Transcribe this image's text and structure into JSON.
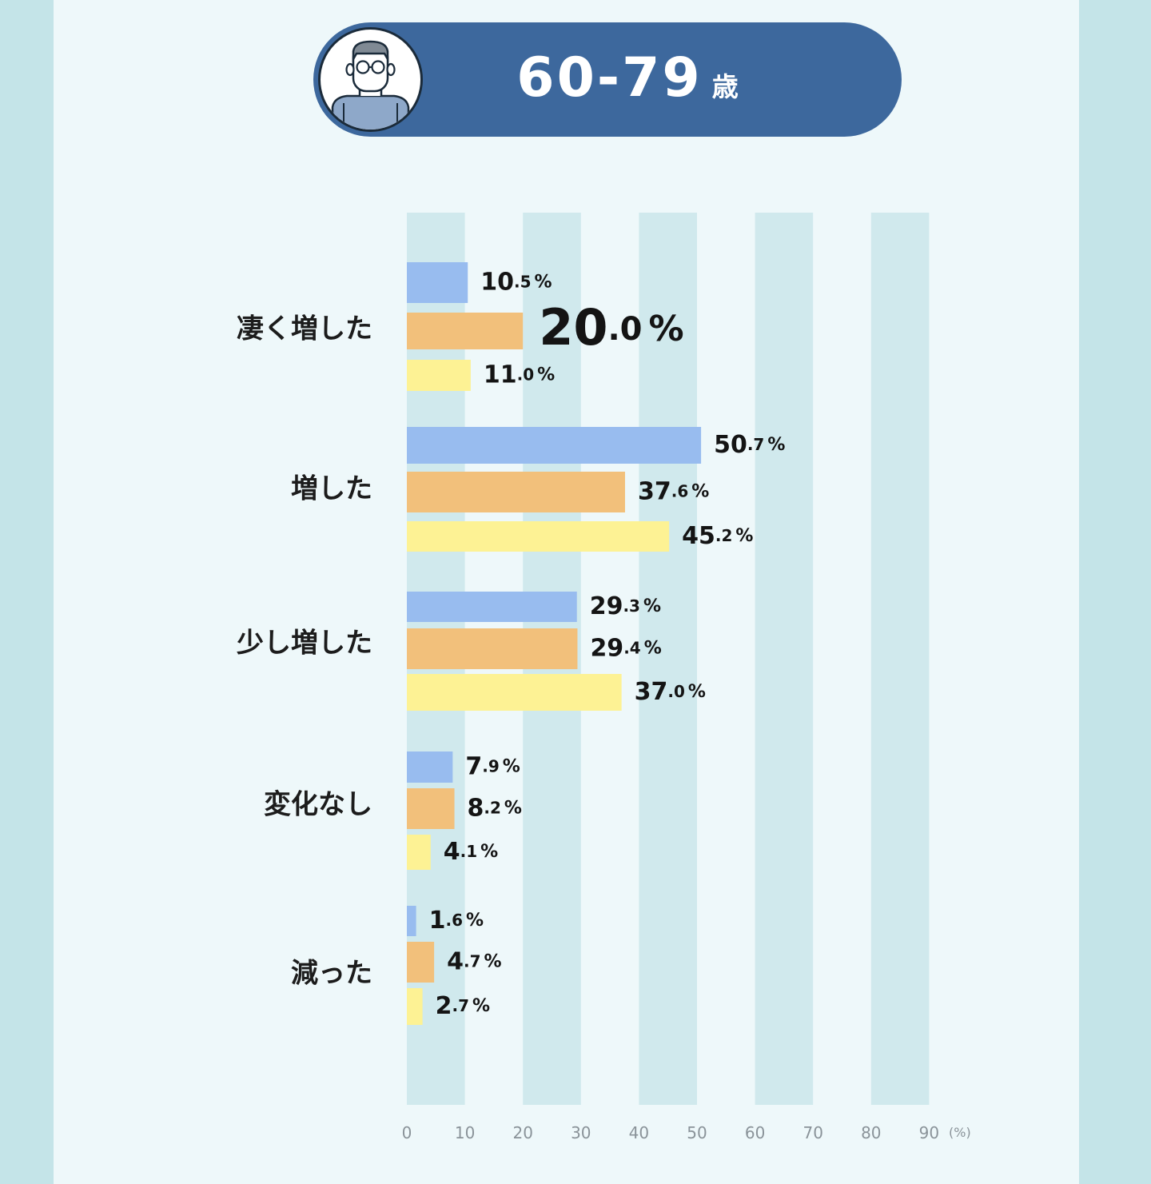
{
  "header": {
    "age_range": "60-79",
    "age_unit": "歳",
    "avatar_icon": "elderly-man-with-glasses-icon"
  },
  "colors": {
    "background": "#c4e4e8",
    "panel": "#eef8fa",
    "header_pill": "#3d689d",
    "grid_band": "#d0e9ed",
    "series": [
      "#98bcef",
      "#f2c07b",
      "#fdf294"
    ]
  },
  "chart_data": {
    "type": "bar",
    "orientation": "horizontal",
    "categories": [
      "凄く増した",
      "増した",
      "少し増した",
      "変化なし",
      "減った"
    ],
    "series": [
      {
        "values": [
          10.5,
          50.7,
          29.3,
          7.9,
          1.6
        ]
      },
      {
        "values": [
          20.0,
          37.6,
          29.4,
          8.2,
          4.7
        ]
      },
      {
        "values": [
          11.0,
          45.2,
          37.0,
          4.1,
          2.7
        ]
      }
    ],
    "xlim": [
      0,
      90
    ],
    "xticks": [
      "0",
      "10",
      "20",
      "30",
      "40",
      "50",
      "60",
      "70",
      "80",
      "90"
    ],
    "x_unit": "(%)",
    "highlight": {
      "category": "凄く増した",
      "series": 1
    },
    "label_suffix": "%",
    "grid": "alternating vertical bands"
  }
}
